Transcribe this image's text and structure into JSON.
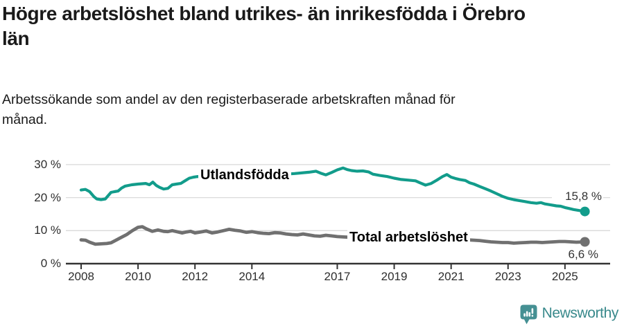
{
  "header": {
    "title": "Högre arbetslöshet bland utrikes- än inrikesfödda i Örebro län",
    "subtitle": "Arbetssökande som andel av den registerbaserade arbetskraften månad för månad."
  },
  "footer": {
    "brand": "Newsworthy"
  },
  "colors": {
    "teal": "#129c8b",
    "gray": "#707070",
    "grid": "#d9d9d9",
    "axis": "#333333",
    "logo_teal": "#459093"
  },
  "chart_data": {
    "type": "line",
    "title": "Högre arbetslöshet bland utrikes- än inrikesfödda i Örebro län",
    "subtitle": "Arbetssökande som andel av den registerbaserade arbetskraften månad för månad.",
    "xlabel": "",
    "ylabel": "",
    "x_range": [
      2008,
      2025.75
    ],
    "y_range": [
      0,
      30
    ],
    "grid": "horizontal",
    "legend_position": "inline-labels",
    "x_ticks": [
      {
        "year": 2008,
        "label": "2008"
      },
      {
        "year": 2010,
        "label": "2010"
      },
      {
        "year": 2012,
        "label": "2012"
      },
      {
        "year": 2014,
        "label": "2014"
      },
      {
        "year": 2017,
        "label": "2017"
      },
      {
        "year": 2019,
        "label": "2019"
      },
      {
        "year": 2021,
        "label": "2021"
      },
      {
        "year": 2023,
        "label": "2023"
      },
      {
        "year": 2025,
        "label": "2025"
      }
    ],
    "y_ticks": [
      {
        "v": 0,
        "label": "0 %"
      },
      {
        "v": 10,
        "label": "10 %"
      },
      {
        "v": 20,
        "label": "20 %"
      },
      {
        "v": 30,
        "label": "30 %"
      }
    ],
    "series": [
      {
        "name": "Utlandsfödda",
        "color": "#129c8b",
        "end_label": "15,8 %",
        "end_value": 15.8,
        "points": [
          [
            2008.0,
            22.3
          ],
          [
            2008.15,
            22.5
          ],
          [
            2008.3,
            21.8
          ],
          [
            2008.45,
            20.3
          ],
          [
            2008.55,
            19.6
          ],
          [
            2008.7,
            19.4
          ],
          [
            2008.85,
            19.6
          ],
          [
            2009.05,
            21.6
          ],
          [
            2009.17,
            21.8
          ],
          [
            2009.3,
            22.0
          ],
          [
            2009.42,
            22.9
          ],
          [
            2009.55,
            23.5
          ],
          [
            2009.78,
            23.9
          ],
          [
            2010.0,
            24.1
          ],
          [
            2010.27,
            24.3
          ],
          [
            2010.4,
            23.9
          ],
          [
            2010.52,
            24.7
          ],
          [
            2010.64,
            23.7
          ],
          [
            2010.76,
            23.1
          ],
          [
            2010.9,
            22.6
          ],
          [
            2011.05,
            22.8
          ],
          [
            2011.2,
            23.9
          ],
          [
            2011.35,
            24.1
          ],
          [
            2011.5,
            24.3
          ],
          [
            2011.65,
            25.1
          ],
          [
            2011.8,
            25.9
          ],
          [
            2011.95,
            26.2
          ],
          [
            2012.1,
            26.4
          ],
          [
            2012.25,
            25.9
          ],
          [
            2012.6,
            25.7
          ],
          [
            2013.0,
            25.9
          ],
          [
            2013.5,
            26.2
          ],
          [
            2014.0,
            26.3
          ],
          [
            2014.5,
            26.7
          ],
          [
            2015.0,
            27.0
          ],
          [
            2015.5,
            27.3
          ],
          [
            2016.0,
            27.7
          ],
          [
            2016.25,
            28.0
          ],
          [
            2016.45,
            27.3
          ],
          [
            2016.6,
            26.9
          ],
          [
            2016.8,
            27.6
          ],
          [
            2017.0,
            28.4
          ],
          [
            2017.2,
            29.0
          ],
          [
            2017.35,
            28.5
          ],
          [
            2017.5,
            28.2
          ],
          [
            2017.7,
            28.0
          ],
          [
            2017.9,
            28.1
          ],
          [
            2018.1,
            27.8
          ],
          [
            2018.25,
            27.1
          ],
          [
            2018.5,
            26.7
          ],
          [
            2018.75,
            26.4
          ],
          [
            2019.0,
            25.9
          ],
          [
            2019.25,
            25.5
          ],
          [
            2019.5,
            25.3
          ],
          [
            2019.75,
            25.1
          ],
          [
            2019.9,
            24.5
          ],
          [
            2020.1,
            23.8
          ],
          [
            2020.3,
            24.3
          ],
          [
            2020.5,
            25.3
          ],
          [
            2020.7,
            26.4
          ],
          [
            2020.85,
            27.0
          ],
          [
            2021.0,
            26.2
          ],
          [
            2021.15,
            25.8
          ],
          [
            2021.3,
            25.5
          ],
          [
            2021.5,
            25.2
          ],
          [
            2021.65,
            24.5
          ],
          [
            2021.8,
            24.1
          ],
          [
            2022.0,
            23.4
          ],
          [
            2022.2,
            22.7
          ],
          [
            2022.4,
            22.0
          ],
          [
            2022.6,
            21.2
          ],
          [
            2022.8,
            20.4
          ],
          [
            2023.0,
            19.8
          ],
          [
            2023.2,
            19.4
          ],
          [
            2023.4,
            19.1
          ],
          [
            2023.6,
            18.8
          ],
          [
            2023.8,
            18.5
          ],
          [
            2024.0,
            18.3
          ],
          [
            2024.15,
            18.5
          ],
          [
            2024.3,
            18.1
          ],
          [
            2024.5,
            17.8
          ],
          [
            2024.7,
            17.5
          ],
          [
            2024.85,
            17.4
          ],
          [
            2025.0,
            17.0
          ],
          [
            2025.15,
            16.7
          ],
          [
            2025.3,
            16.4
          ],
          [
            2025.5,
            16.1
          ],
          [
            2025.7,
            15.8
          ]
        ]
      },
      {
        "name": "Total arbetslöshet",
        "color": "#707070",
        "end_label": "6,6 %",
        "end_value": 6.6,
        "points": [
          [
            2008.0,
            7.2
          ],
          [
            2008.15,
            7.1
          ],
          [
            2008.3,
            6.5
          ],
          [
            2008.5,
            5.9
          ],
          [
            2008.7,
            6.0
          ],
          [
            2008.9,
            6.1
          ],
          [
            2009.05,
            6.3
          ],
          [
            2009.2,
            7.0
          ],
          [
            2009.4,
            7.9
          ],
          [
            2009.6,
            8.8
          ],
          [
            2009.8,
            10.0
          ],
          [
            2010.0,
            11.0
          ],
          [
            2010.15,
            11.2
          ],
          [
            2010.3,
            10.5
          ],
          [
            2010.5,
            9.8
          ],
          [
            2010.7,
            10.2
          ],
          [
            2010.9,
            9.8
          ],
          [
            2011.05,
            9.7
          ],
          [
            2011.2,
            10.0
          ],
          [
            2011.4,
            9.6
          ],
          [
            2011.55,
            9.3
          ],
          [
            2011.7,
            9.6
          ],
          [
            2011.85,
            9.8
          ],
          [
            2012.0,
            9.3
          ],
          [
            2012.2,
            9.6
          ],
          [
            2012.4,
            9.9
          ],
          [
            2012.6,
            9.3
          ],
          [
            2012.8,
            9.6
          ],
          [
            2013.0,
            10.0
          ],
          [
            2013.2,
            10.4
          ],
          [
            2013.4,
            10.1
          ],
          [
            2013.6,
            9.9
          ],
          [
            2013.8,
            9.5
          ],
          [
            2014.0,
            9.7
          ],
          [
            2014.2,
            9.4
          ],
          [
            2014.4,
            9.2
          ],
          [
            2014.6,
            9.1
          ],
          [
            2014.8,
            9.4
          ],
          [
            2015.0,
            9.3
          ],
          [
            2015.2,
            9.0
          ],
          [
            2015.4,
            8.8
          ],
          [
            2015.6,
            8.7
          ],
          [
            2015.8,
            9.0
          ],
          [
            2016.0,
            8.7
          ],
          [
            2016.2,
            8.4
          ],
          [
            2016.4,
            8.3
          ],
          [
            2016.6,
            8.6
          ],
          [
            2016.8,
            8.4
          ],
          [
            2017.0,
            8.2
          ],
          [
            2017.2,
            8.1
          ],
          [
            2017.4,
            8.0
          ],
          [
            2017.8,
            7.8
          ],
          [
            2018.2,
            7.7
          ],
          [
            2018.6,
            7.5
          ],
          [
            2019.0,
            7.4
          ],
          [
            2019.4,
            7.3
          ],
          [
            2019.8,
            7.4
          ],
          [
            2020.2,
            7.7
          ],
          [
            2020.6,
            7.8
          ],
          [
            2021.0,
            7.6
          ],
          [
            2021.4,
            7.3
          ],
          [
            2021.8,
            7.1
          ],
          [
            2022.0,
            7.0
          ],
          [
            2022.2,
            6.8
          ],
          [
            2022.4,
            6.6
          ],
          [
            2022.6,
            6.5
          ],
          [
            2022.8,
            6.4
          ],
          [
            2023.0,
            6.4
          ],
          [
            2023.2,
            6.2
          ],
          [
            2023.4,
            6.3
          ],
          [
            2023.6,
            6.4
          ],
          [
            2023.8,
            6.5
          ],
          [
            2024.0,
            6.5
          ],
          [
            2024.2,
            6.4
          ],
          [
            2024.4,
            6.5
          ],
          [
            2024.6,
            6.6
          ],
          [
            2024.8,
            6.7
          ],
          [
            2025.0,
            6.7
          ],
          [
            2025.2,
            6.6
          ],
          [
            2025.4,
            6.5
          ],
          [
            2025.7,
            6.6
          ]
        ]
      }
    ]
  }
}
